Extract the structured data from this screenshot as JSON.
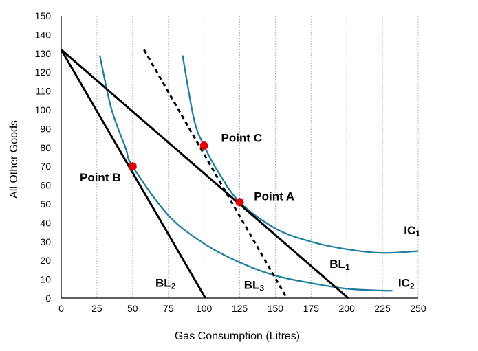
{
  "chart_data": {
    "type": "line",
    "xlabel": "Gas Consumption (Litres)",
    "ylabel": "All Other Goods",
    "xlim": [
      0,
      250
    ],
    "ylim": [
      0,
      150
    ],
    "x_ticks": [
      "0",
      "25",
      "50",
      "75",
      "100",
      "125",
      "150",
      "175",
      "200",
      "225",
      "250"
    ],
    "y_ticks": [
      "0",
      "10",
      "20",
      "30",
      "40",
      "50",
      "60",
      "70",
      "80",
      "90",
      "100",
      "110",
      "120",
      "130",
      "140",
      "150"
    ],
    "grid": "vertical-dotted",
    "colors": {
      "budget": "#000000",
      "indifference": "#1f7fa0",
      "point": "#e00000"
    },
    "budget_lines": [
      {
        "name": "BL",
        "sub": "1",
        "points": [
          [
            0,
            132
          ],
          [
            201,
            0
          ]
        ],
        "style": "solid",
        "label_pos": [
          188,
          16
        ]
      },
      {
        "name": "BL",
        "sub": "2",
        "points": [
          [
            0,
            132
          ],
          [
            101,
            0
          ]
        ],
        "style": "solid",
        "label_pos": [
          66,
          6
        ]
      },
      {
        "name": "BL",
        "sub": "3",
        "points": [
          [
            58,
            132
          ],
          [
            158,
            0
          ]
        ],
        "style": "dashed",
        "label_pos": [
          128,
          5
        ]
      }
    ],
    "indifference_curves": [
      {
        "name": "IC",
        "sub": "1",
        "points": [
          [
            85,
            129
          ],
          [
            93,
            95
          ],
          [
            100,
            81
          ],
          [
            110,
            67
          ],
          [
            125,
            51
          ],
          [
            150,
            37
          ],
          [
            175,
            30
          ],
          [
            200,
            26
          ],
          [
            225,
            24
          ],
          [
            250,
            25
          ]
        ],
        "label_pos": [
          240,
          34
        ]
      },
      {
        "name": "IC",
        "sub": "2",
        "points": [
          [
            27,
            129
          ],
          [
            35,
            101
          ],
          [
            45,
            80
          ],
          [
            50,
            70
          ],
          [
            75,
            44
          ],
          [
            100,
            29
          ],
          [
            125,
            19
          ],
          [
            150,
            12
          ],
          [
            175,
            8
          ],
          [
            200,
            5
          ],
          [
            225,
            4
          ],
          [
            232,
            4
          ]
        ],
        "label_pos": [
          236,
          6
        ]
      }
    ],
    "points": [
      {
        "label": "Point A",
        "x": 125,
        "y": 51,
        "label_pos": [
          135,
          52
        ]
      },
      {
        "label": "Point B",
        "x": 50,
        "y": 70,
        "label_pos": [
          13,
          62
        ]
      },
      {
        "label": "Point C",
        "x": 100,
        "y": 81,
        "label_pos": [
          112,
          83
        ]
      }
    ]
  }
}
